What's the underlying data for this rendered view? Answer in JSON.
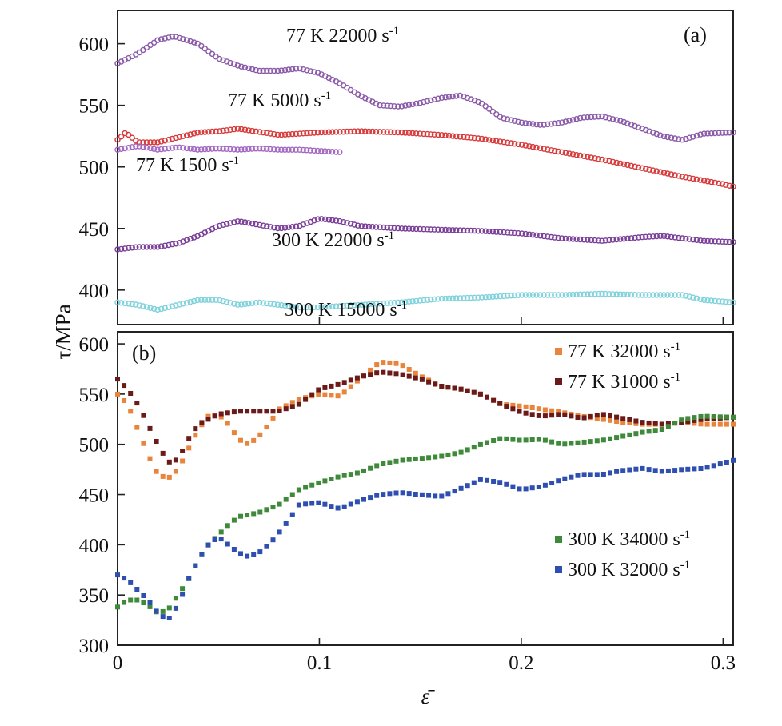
{
  "chart_data": [
    {
      "panel_label": "(a)",
      "type": "scatter",
      "ylabel": "τ/MPa",
      "xlim": [
        0,
        0.305
      ],
      "ylim": [
        372,
        627
      ],
      "yticks": [
        400,
        450,
        500,
        550,
        600
      ],
      "ytick_labels": [
        "400",
        "450",
        "500",
        "550",
        "600"
      ],
      "xticks": [
        0,
        0.1,
        0.2,
        0.3
      ],
      "series": [
        {
          "name": "77 K 22000 s-1",
          "color": "#8a5aa8",
          "points": [
            [
              0,
              584
            ],
            [
              0.01,
              592
            ],
            [
              0.02,
              603
            ],
            [
              0.028,
              606
            ],
            [
              0.04,
              600
            ],
            [
              0.05,
              588
            ],
            [
              0.06,
              582
            ],
            [
              0.07,
              578
            ],
            [
              0.08,
              578
            ],
            [
              0.09,
              580
            ],
            [
              0.1,
              576
            ],
            [
              0.11,
              568
            ],
            [
              0.12,
              558
            ],
            [
              0.13,
              550
            ],
            [
              0.14,
              549
            ],
            [
              0.15,
              552
            ],
            [
              0.16,
              556
            ],
            [
              0.17,
              558
            ],
            [
              0.18,
              552
            ],
            [
              0.19,
              540
            ],
            [
              0.2,
              536
            ],
            [
              0.21,
              534
            ],
            [
              0.22,
              536
            ],
            [
              0.23,
              540
            ],
            [
              0.24,
              541
            ],
            [
              0.25,
              537
            ],
            [
              0.26,
              531
            ],
            [
              0.27,
              525
            ],
            [
              0.28,
              522
            ],
            [
              0.29,
              527
            ],
            [
              0.305,
              528
            ]
          ]
        },
        {
          "name": "77 K 5000 s-1",
          "color": "#d63a3a",
          "points": [
            [
              0,
              522
            ],
            [
              0.004,
              528
            ],
            [
              0.01,
              520
            ],
            [
              0.02,
              520
            ],
            [
              0.03,
              524
            ],
            [
              0.04,
              528
            ],
            [
              0.05,
              529
            ],
            [
              0.06,
              531
            ],
            [
              0.08,
              526
            ],
            [
              0.1,
              528
            ],
            [
              0.12,
              529
            ],
            [
              0.14,
              528
            ],
            [
              0.16,
              526
            ],
            [
              0.18,
              523
            ],
            [
              0.2,
              518
            ],
            [
              0.22,
              512
            ],
            [
              0.24,
              506
            ],
            [
              0.26,
              499
            ],
            [
              0.28,
              492
            ],
            [
              0.3,
              486
            ],
            [
              0.305,
              484
            ]
          ]
        },
        {
          "name": "77 K 1500 s-1",
          "color": "#a368c2",
          "points": [
            [
              0,
              514
            ],
            [
              0.01,
              517
            ],
            [
              0.02,
              514
            ],
            [
              0.03,
              516
            ],
            [
              0.04,
              514
            ],
            [
              0.05,
              515
            ],
            [
              0.06,
              514
            ],
            [
              0.07,
              515
            ],
            [
              0.08,
              514
            ],
            [
              0.09,
              514
            ],
            [
              0.1,
              513
            ],
            [
              0.11,
              512
            ]
          ]
        },
        {
          "name": "300 K 22000 s-1",
          "color": "#7a3e98",
          "points": [
            [
              0,
              433
            ],
            [
              0.01,
              435
            ],
            [
              0.02,
              435
            ],
            [
              0.03,
              438
            ],
            [
              0.04,
              444
            ],
            [
              0.05,
              452
            ],
            [
              0.06,
              456
            ],
            [
              0.07,
              453
            ],
            [
              0.08,
              450
            ],
            [
              0.09,
              452
            ],
            [
              0.1,
              458
            ],
            [
              0.11,
              456
            ],
            [
              0.12,
              452
            ],
            [
              0.14,
              450
            ],
            [
              0.16,
              449
            ],
            [
              0.18,
              448
            ],
            [
              0.2,
              446
            ],
            [
              0.22,
              442
            ],
            [
              0.24,
              440
            ],
            [
              0.26,
              443
            ],
            [
              0.27,
              444
            ],
            [
              0.28,
              442
            ],
            [
              0.29,
              440
            ],
            [
              0.305,
              439
            ]
          ]
        },
        {
          "name": "300 K 15000 s-1",
          "color": "#80d2dc",
          "points": [
            [
              0,
              390
            ],
            [
              0.01,
              388
            ],
            [
              0.02,
              384
            ],
            [
              0.03,
              388
            ],
            [
              0.04,
              392
            ],
            [
              0.05,
              392
            ],
            [
              0.06,
              388
            ],
            [
              0.07,
              390
            ],
            [
              0.08,
              388
            ],
            [
              0.09,
              386
            ],
            [
              0.1,
              386
            ],
            [
              0.12,
              388
            ],
            [
              0.14,
              390
            ],
            [
              0.16,
              393
            ],
            [
              0.18,
              394
            ],
            [
              0.2,
              396
            ],
            [
              0.22,
              396
            ],
            [
              0.24,
              397
            ],
            [
              0.26,
              396
            ],
            [
              0.28,
              396
            ],
            [
              0.29,
              392
            ],
            [
              0.305,
              390
            ]
          ]
        }
      ]
    },
    {
      "panel_label": "(b)",
      "type": "scatter",
      "xlabel": "ε̄",
      "xlim": [
        0,
        0.305
      ],
      "ylim": [
        300,
        612
      ],
      "yticks": [
        300,
        350,
        400,
        450,
        500,
        550,
        600
      ],
      "ytick_labels": [
        "300",
        "350",
        "400",
        "450",
        "500",
        "550",
        "600"
      ],
      "xticks": [
        0,
        0.1,
        0.2,
        0.3
      ],
      "xtick_labels": [
        "0",
        "0.1",
        "0.2",
        "0.3"
      ],
      "series": [
        {
          "name": "77 K 32000 s-1",
          "color": "#e8843c",
          "points": [
            [
              0,
              550
            ],
            [
              0.005,
              540
            ],
            [
              0.01,
              515
            ],
            [
              0.015,
              490
            ],
            [
              0.02,
              470
            ],
            [
              0.025,
              466
            ],
            [
              0.03,
              475
            ],
            [
              0.035,
              495
            ],
            [
              0.04,
              515
            ],
            [
              0.045,
              528
            ],
            [
              0.05,
              530
            ],
            [
              0.055,
              520
            ],
            [
              0.06,
              505
            ],
            [
              0.065,
              500
            ],
            [
              0.07,
              508
            ],
            [
              0.075,
              520
            ],
            [
              0.08,
              535
            ],
            [
              0.09,
              545
            ],
            [
              0.1,
              550
            ],
            [
              0.11,
              548
            ],
            [
              0.12,
              565
            ],
            [
              0.13,
              582
            ],
            [
              0.14,
              580
            ],
            [
              0.15,
              568
            ],
            [
              0.16,
              558
            ],
            [
              0.17,
              555
            ],
            [
              0.18,
              550
            ],
            [
              0.19,
              540
            ],
            [
              0.2,
              538
            ],
            [
              0.21,
              535
            ],
            [
              0.22,
              532
            ],
            [
              0.23,
              528
            ],
            [
              0.24,
              525
            ],
            [
              0.25,
              522
            ],
            [
              0.26,
              520
            ],
            [
              0.27,
              520
            ],
            [
              0.28,
              522
            ],
            [
              0.29,
              520
            ],
            [
              0.305,
              520
            ]
          ]
        },
        {
          "name": "77 K 31000 s-1",
          "color": "#6b1a1a",
          "points": [
            [
              0,
              565
            ],
            [
              0.005,
              555
            ],
            [
              0.01,
              540
            ],
            [
              0.015,
              520
            ],
            [
              0.02,
              500
            ],
            [
              0.025,
              482
            ],
            [
              0.03,
              485
            ],
            [
              0.035,
              505
            ],
            [
              0.04,
              520
            ],
            [
              0.05,
              530
            ],
            [
              0.06,
              533
            ],
            [
              0.07,
              533
            ],
            [
              0.08,
              533
            ],
            [
              0.09,
              540
            ],
            [
              0.1,
              555
            ],
            [
              0.11,
              560
            ],
            [
              0.12,
              567
            ],
            [
              0.13,
              572
            ],
            [
              0.14,
              570
            ],
            [
              0.15,
              565
            ],
            [
              0.16,
              558
            ],
            [
              0.17,
              555
            ],
            [
              0.18,
              550
            ],
            [
              0.19,
              540
            ],
            [
              0.2,
              532
            ],
            [
              0.21,
              528
            ],
            [
              0.22,
              530
            ],
            [
              0.23,
              526
            ],
            [
              0.24,
              530
            ],
            [
              0.25,
              526
            ],
            [
              0.26,
              522
            ],
            [
              0.27,
              520
            ],
            [
              0.28,
              522
            ],
            [
              0.29,
              525
            ],
            [
              0.305,
              527
            ]
          ]
        },
        {
          "name": "300 K 34000 s-1",
          "color": "#3f8a3a",
          "points": [
            [
              0,
              338
            ],
            [
              0.005,
              345
            ],
            [
              0.01,
              345
            ],
            [
              0.015,
              340
            ],
            [
              0.02,
              332
            ],
            [
              0.025,
              335
            ],
            [
              0.03,
              350
            ],
            [
              0.035,
              365
            ],
            [
              0.04,
              385
            ],
            [
              0.045,
              400
            ],
            [
              0.05,
              410
            ],
            [
              0.055,
              420
            ],
            [
              0.06,
              428
            ],
            [
              0.07,
              432
            ],
            [
              0.08,
              440
            ],
            [
              0.09,
              455
            ],
            [
              0.1,
              462
            ],
            [
              0.11,
              468
            ],
            [
              0.12,
              472
            ],
            [
              0.13,
              480
            ],
            [
              0.14,
              484
            ],
            [
              0.15,
              486
            ],
            [
              0.16,
              488
            ],
            [
              0.17,
              492
            ],
            [
              0.18,
              500
            ],
            [
              0.19,
              506
            ],
            [
              0.2,
              504
            ],
            [
              0.21,
              505
            ],
            [
              0.22,
              500
            ],
            [
              0.23,
              502
            ],
            [
              0.24,
              504
            ],
            [
              0.25,
              508
            ],
            [
              0.26,
              512
            ],
            [
              0.27,
              515
            ],
            [
              0.28,
              525
            ],
            [
              0.29,
              528
            ],
            [
              0.305,
              527
            ]
          ]
        },
        {
          "name": "300 K 32000 s-1",
          "color": "#2f4fb0",
          "points": [
            [
              0,
              370
            ],
            [
              0.005,
              365
            ],
            [
              0.01,
              355
            ],
            [
              0.015,
              345
            ],
            [
              0.02,
              332
            ],
            [
              0.025,
              325
            ],
            [
              0.03,
              340
            ],
            [
              0.035,
              365
            ],
            [
              0.04,
              385
            ],
            [
              0.045,
              400
            ],
            [
              0.05,
              408
            ],
            [
              0.055,
              400
            ],
            [
              0.06,
              392
            ],
            [
              0.065,
              388
            ],
            [
              0.07,
              392
            ],
            [
              0.075,
              400
            ],
            [
              0.08,
              412
            ],
            [
              0.085,
              425
            ],
            [
              0.09,
              440
            ],
            [
              0.1,
              442
            ],
            [
              0.11,
              436
            ],
            [
              0.12,
              444
            ],
            [
              0.13,
              450
            ],
            [
              0.14,
              452
            ],
            [
              0.15,
              450
            ],
            [
              0.16,
              448
            ],
            [
              0.17,
              456
            ],
            [
              0.18,
              465
            ],
            [
              0.19,
              462
            ],
            [
              0.2,
              455
            ],
            [
              0.21,
              458
            ],
            [
              0.22,
              465
            ],
            [
              0.23,
              470
            ],
            [
              0.24,
              470
            ],
            [
              0.25,
              474
            ],
            [
              0.26,
              476
            ],
            [
              0.27,
              473
            ],
            [
              0.28,
              475
            ],
            [
              0.29,
              476
            ],
            [
              0.305,
              484
            ]
          ]
        }
      ]
    }
  ]
}
